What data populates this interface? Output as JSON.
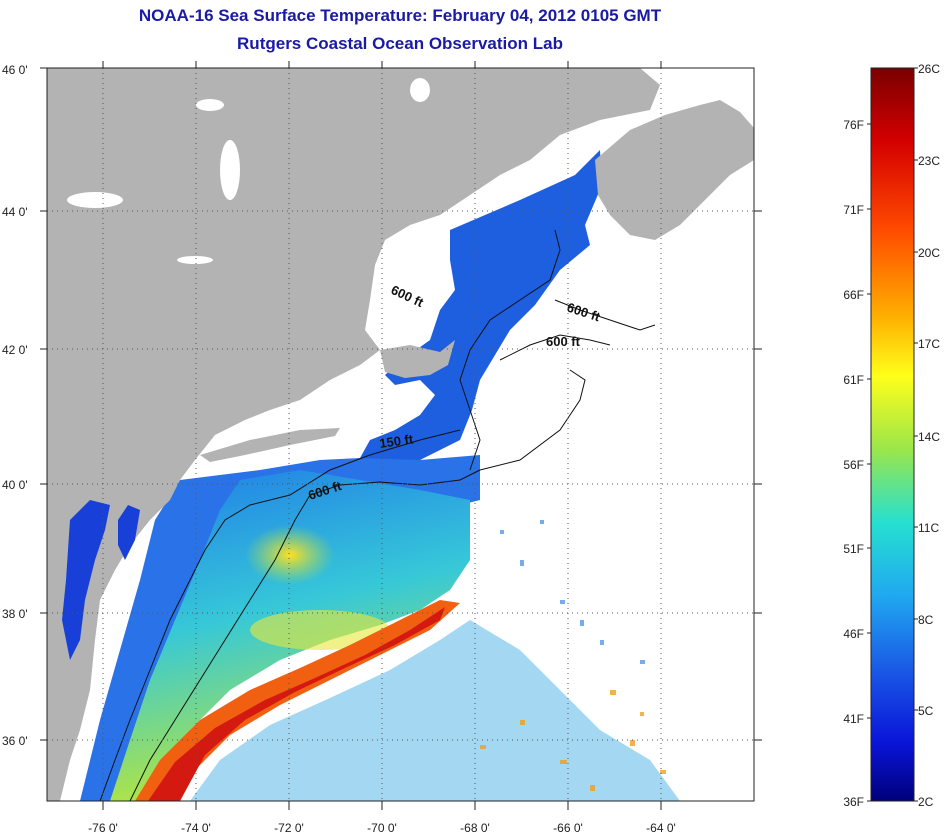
{
  "title": {
    "line1": "NOAA-16 Sea Surface Temperature:  February 04, 2012 0105 GMT",
    "line2": "Rutgers Coastal Ocean Observation Lab"
  },
  "latitude_labels": [
    "46 0'",
    "44 0'",
    "42 0'",
    "40 0'",
    "38 0'",
    "36 0'"
  ],
  "longitude_labels": [
    "-76 0'",
    "-74 0'",
    "-72 0'",
    "-70 0'",
    "-68 0'",
    "-66 0'",
    "-64 0'"
  ],
  "depth_contours": [
    "600 ft",
    "600 ft",
    "600 ft",
    "150 ft",
    "600 ft"
  ],
  "colorbar": {
    "celsius": [
      "26C",
      "23C",
      "20C",
      "17C",
      "14C",
      "11C",
      "8C",
      "5C",
      "2C"
    ],
    "fahrenheit": [
      "76F",
      "71F",
      "66F",
      "61F",
      "56F",
      "51F",
      "46F",
      "41F",
      "36F"
    ]
  },
  "colors": {
    "title": "#1a1aa6",
    "land": "#b3b3b3",
    "cloud": "#ffffff"
  }
}
